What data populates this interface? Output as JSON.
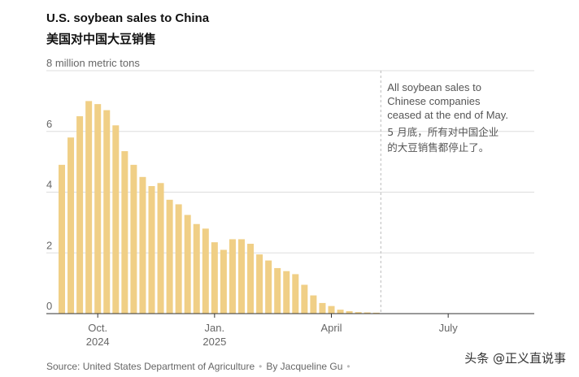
{
  "header": {
    "title": "U.S. soybean sales to China",
    "subtitle": "美国对中国大豆销售"
  },
  "chart_data": {
    "type": "bar",
    "unit_label": "8 million metric tons",
    "ylim": [
      0,
      8
    ],
    "y_ticks": [
      0,
      2,
      4,
      6
    ],
    "grid": true,
    "bar_color": "#f0cf86",
    "x_tick_labels": [
      {
        "index": 4,
        "line1": "Oct.",
        "line2": "2024"
      },
      {
        "index": 17,
        "line1": "Jan.",
        "line2": "2025"
      },
      {
        "index": 30,
        "line1": "April",
        "line2": ""
      },
      {
        "index": 43,
        "line1": "July",
        "line2": ""
      }
    ],
    "values": [
      4.9,
      5.8,
      6.5,
      7.0,
      6.9,
      6.7,
      6.2,
      5.35,
      4.9,
      4.5,
      4.2,
      4.3,
      3.75,
      3.6,
      3.25,
      2.95,
      2.8,
      2.35,
      2.1,
      2.45,
      2.45,
      2.3,
      1.95,
      1.75,
      1.5,
      1.4,
      1.3,
      0.95,
      0.6,
      0.35,
      0.25,
      0.13,
      0.08,
      0.05,
      0.04,
      0.03
    ],
    "annotation": {
      "after_index": 36,
      "en": [
        "All soybean sales to",
        "Chinese companies",
        "ceased at the end of May."
      ],
      "cn": [
        "5 月底，所有对中国企业",
        "的大豆销售都停止了。"
      ]
    }
  },
  "footer": {
    "source": "Source: United States Department of Agriculture",
    "byline": "By Jacqueline Gu",
    "watermark": "头条 @正义直说事"
  }
}
